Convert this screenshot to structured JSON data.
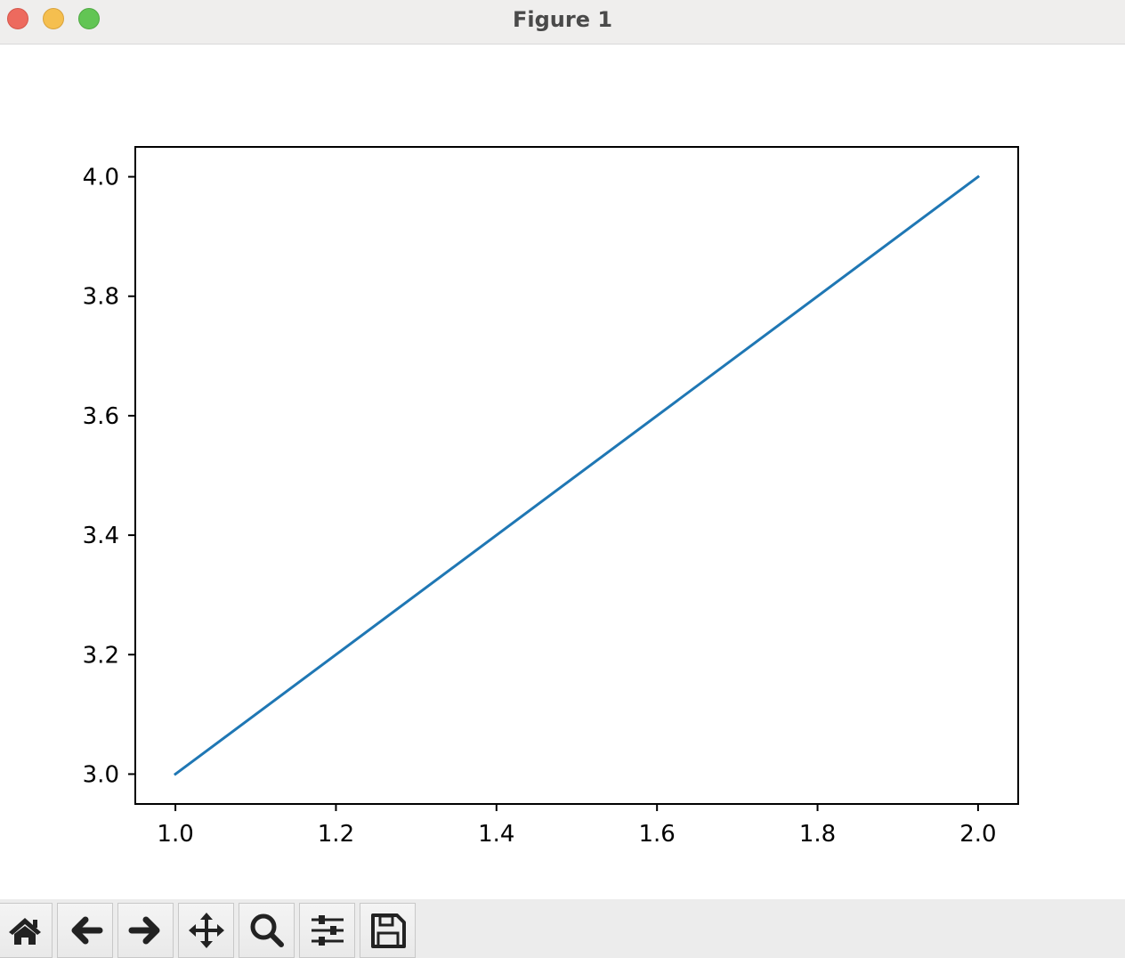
{
  "window": {
    "title": "Figure 1",
    "controls": {
      "close_color": "#ed6a5e",
      "minimize_color": "#f5bf4f",
      "maximize_color": "#62c554"
    }
  },
  "toolbar": {
    "buttons": [
      {
        "icon": "home-icon"
      },
      {
        "icon": "back-arrow-icon"
      },
      {
        "icon": "forward-arrow-icon"
      },
      {
        "icon": "pan-move-icon"
      },
      {
        "icon": "zoom-magnifier-icon"
      },
      {
        "icon": "configure-subplots-icon"
      },
      {
        "icon": "save-floppy-icon"
      }
    ]
  },
  "chart_data": {
    "type": "line",
    "x": [
      1.0,
      2.0
    ],
    "series": [
      {
        "values": [
          3.0,
          4.0
        ],
        "color": "#1f77b4"
      }
    ],
    "xlim": [
      0.95,
      2.05
    ],
    "ylim": [
      2.95,
      4.05
    ],
    "xticks": [
      "1.0",
      "1.2",
      "1.4",
      "1.6",
      "1.8",
      "2.0"
    ],
    "yticks": [
      "3.0",
      "3.2",
      "3.4",
      "3.6",
      "3.8",
      "4.0"
    ],
    "grid": false
  }
}
